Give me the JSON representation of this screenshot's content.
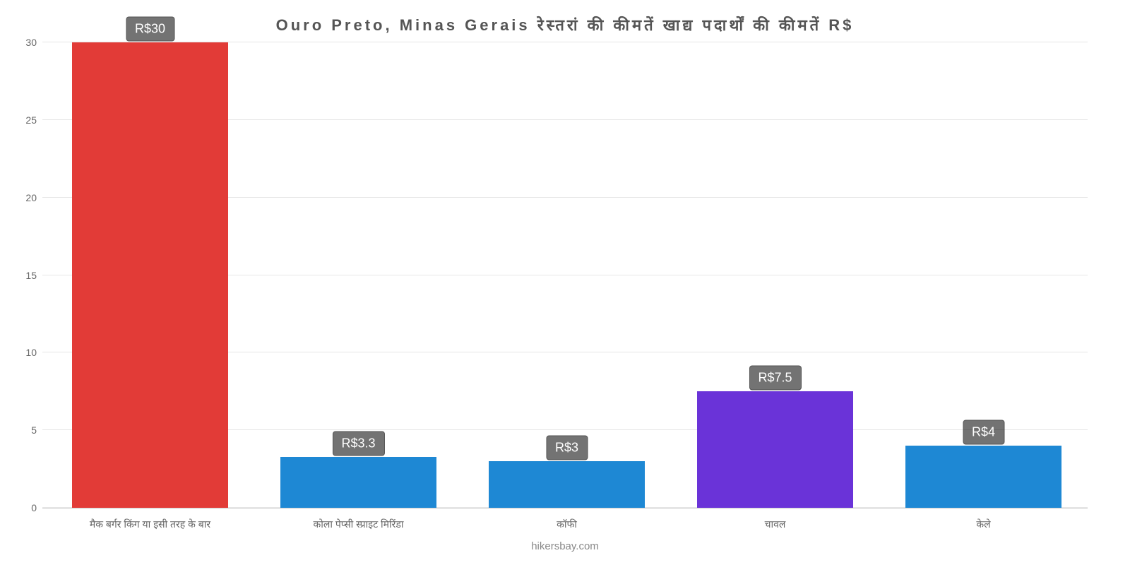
{
  "chart": {
    "type": "bar",
    "title": "Ouro Preto, Minas Gerais रेस्तरां की कीमतें खाद्य पदार्थों की कीमतें R$",
    "title_fontsize": 22,
    "title_color": "#555555",
    "background_color": "#ffffff",
    "grid_color": "#e6e6e6",
    "axis_color": "#cccccc",
    "ylim": [
      0,
      30
    ],
    "ytick_step": 5,
    "yticks": [
      0,
      5,
      10,
      15,
      20,
      25,
      30
    ],
    "categories": [
      "मैक बर्गर किंग या इसी तरह के बार",
      "कोला पेप्सी स्प्राइट मिरिंडा",
      "कॉफी",
      "चावल",
      "केले"
    ],
    "values": [
      30,
      3.3,
      3,
      7.5,
      4
    ],
    "value_labels": [
      "R$30",
      "R$3.3",
      "R$3",
      "R$7.5",
      "R$4"
    ],
    "bar_colors": [
      "#e23b37",
      "#1e88d4",
      "#1e88d4",
      "#6a33d8",
      "#1e88d4"
    ],
    "bar_width_pct": 75,
    "label_bg": "rgba(0,0,0,0.55)",
    "label_color": "#ffffff",
    "label_fontsize": 18,
    "xlabel_fontsize": 14,
    "xlabel_color": "#666666",
    "ylabel_fontsize": 14,
    "ylabel_color": "#666666",
    "footer": "hikersbay.com",
    "footer_color": "#888888"
  }
}
